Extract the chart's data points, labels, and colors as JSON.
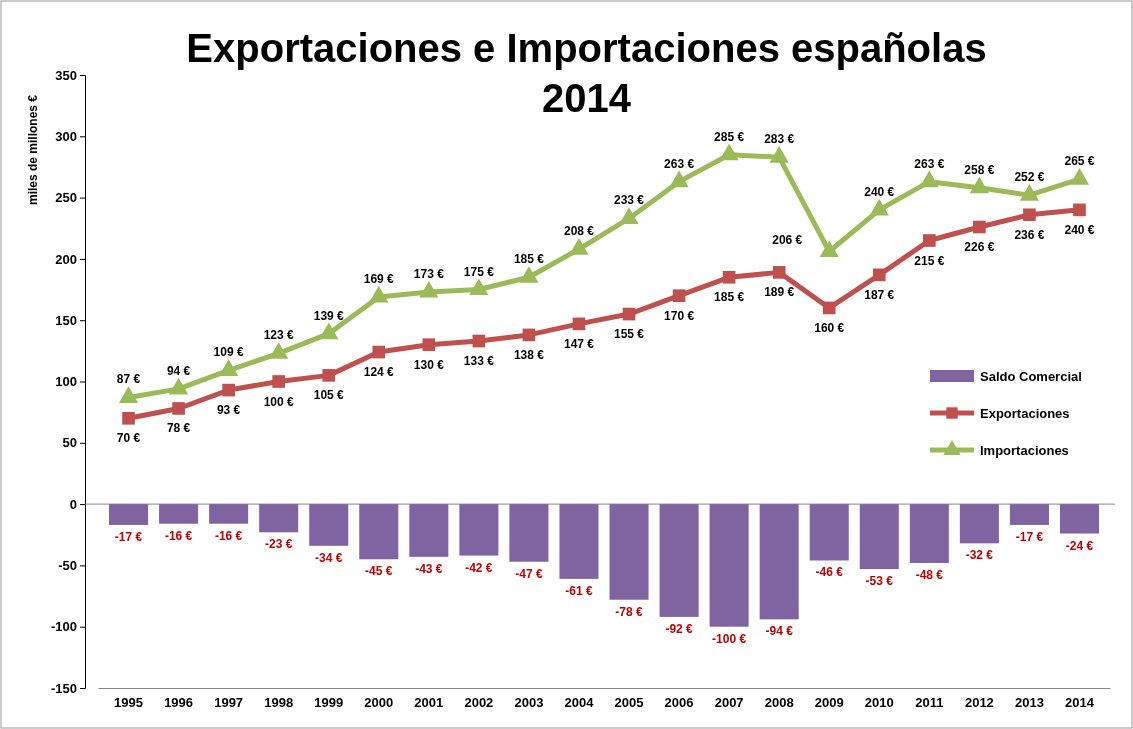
{
  "chart_data": {
    "type": "line",
    "title": "Exportaciones e Importaciones españolas",
    "subtitle": "2014",
    "ylabel": "miles de millones €",
    "categories": [
      "1995",
      "1996",
      "1997",
      "1998",
      "1999",
      "2000",
      "2001",
      "2002",
      "2003",
      "2004",
      "2005",
      "2006",
      "2007",
      "2008",
      "2009",
      "2010",
      "2011",
      "2012",
      "2013",
      "2014"
    ],
    "ylim": [
      -150,
      350
    ],
    "yticks": [
      -150,
      -100,
      -50,
      0,
      50,
      100,
      150,
      200,
      250,
      300,
      350
    ],
    "legend": "right",
    "series": [
      {
        "name": "Saldo Comercial",
        "type": "bar",
        "color": "#8064a2",
        "values": [
          -17,
          -16,
          -16,
          -23,
          -34,
          -45,
          -43,
          -42,
          -47,
          -61,
          -78,
          -92,
          -100,
          -94,
          -46,
          -53,
          -48,
          -32,
          -17,
          -24
        ],
        "value_labels": [
          "-17 €",
          "-16 €",
          "-16 €",
          "-23 €",
          "-34 €",
          "-45 €",
          "-43 €",
          "-42 €",
          "-47 €",
          "-61 €",
          "-78 €",
          "-92 €",
          "-100 €",
          "-94 €",
          "-46 €",
          "-53 €",
          "-48 €",
          "-32 €",
          "-17 €",
          "-24 €"
        ]
      },
      {
        "name": "Exportaciones",
        "marker": "square",
        "color": "#c0504d",
        "values": [
          70,
          78,
          93,
          100,
          105,
          124,
          130,
          133,
          138,
          147,
          155,
          170,
          185,
          189,
          160,
          187,
          215,
          226,
          236,
          240
        ],
        "value_labels": [
          "70 €",
          "78 €",
          "93 €",
          "100 €",
          "105 €",
          "124 €",
          "130 €",
          "133 €",
          "138 €",
          "147 €",
          "155 €",
          "170 €",
          "185 €",
          "189 €",
          "160 €",
          "187 €",
          "215 €",
          "226 €",
          "236 €",
          "240 €"
        ]
      },
      {
        "name": "Importaciones",
        "marker": "triangle",
        "color": "#9bbb59",
        "values": [
          87,
          94,
          109,
          123,
          139,
          169,
          173,
          175,
          185,
          208,
          233,
          263,
          285,
          283,
          206,
          240,
          263,
          258,
          252,
          265
        ],
        "value_labels": [
          "87 €",
          "94 €",
          "109 €",
          "123 €",
          "139 €",
          "169 €",
          "173 €",
          "175 €",
          "185 €",
          "208 €",
          "233 €",
          "263 €",
          "285 €",
          "283 €",
          "206 €",
          "240 €",
          "263 €",
          "258 €",
          "252 €",
          "265 €"
        ]
      }
    ]
  }
}
